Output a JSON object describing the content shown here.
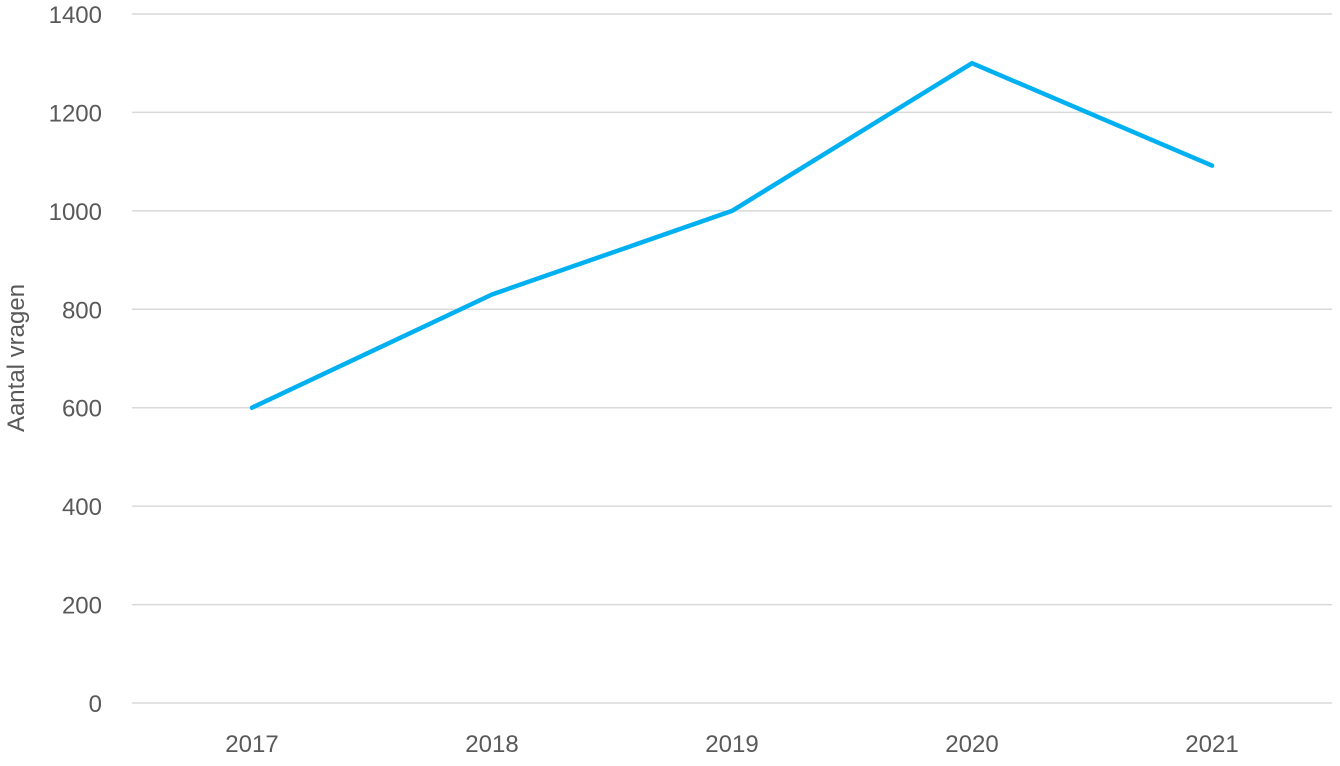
{
  "chart_data": {
    "type": "line",
    "categories": [
      "2017",
      "2018",
      "2019",
      "2020",
      "2021"
    ],
    "series": [
      {
        "values": [
          600,
          830,
          1000,
          1300,
          1092
        ],
        "color": "#00b0f0"
      }
    ],
    "xlabel": "",
    "ylabel": "Aantal vragen",
    "ylim": [
      0,
      1400
    ],
    "yticks": [
      "0",
      "200",
      "400",
      "600",
      "800",
      "1000",
      "1200",
      "1400"
    ],
    "grid": true,
    "legend": "none",
    "gridline_color": "#d9d9d9",
    "text_color": "#595959"
  }
}
